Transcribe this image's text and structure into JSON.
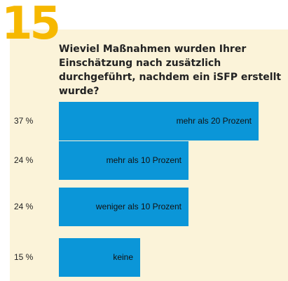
{
  "header": {
    "number": "15",
    "question": "Wieviel Maßnahmen wurden Ihrer Einschätzung nach zusätzlich durchgeführt, nachdem ein iSFP erstellt wurde?"
  },
  "colors": {
    "accent": "#f6b800",
    "bar": "#0b96d8",
    "panel": "#fbf3d9"
  },
  "chart_data": {
    "type": "bar",
    "orientation": "horizontal",
    "categories": [
      "mehr als 20 Prozent",
      "mehr als 10 Prozent",
      "weniger als 10 Prozent",
      "keine"
    ],
    "value_labels": [
      "37 %",
      "24 %",
      "24 %",
      "15 %"
    ],
    "values": [
      37,
      24,
      24,
      15
    ],
    "unit": "%",
    "grid": false,
    "legend": "none"
  }
}
